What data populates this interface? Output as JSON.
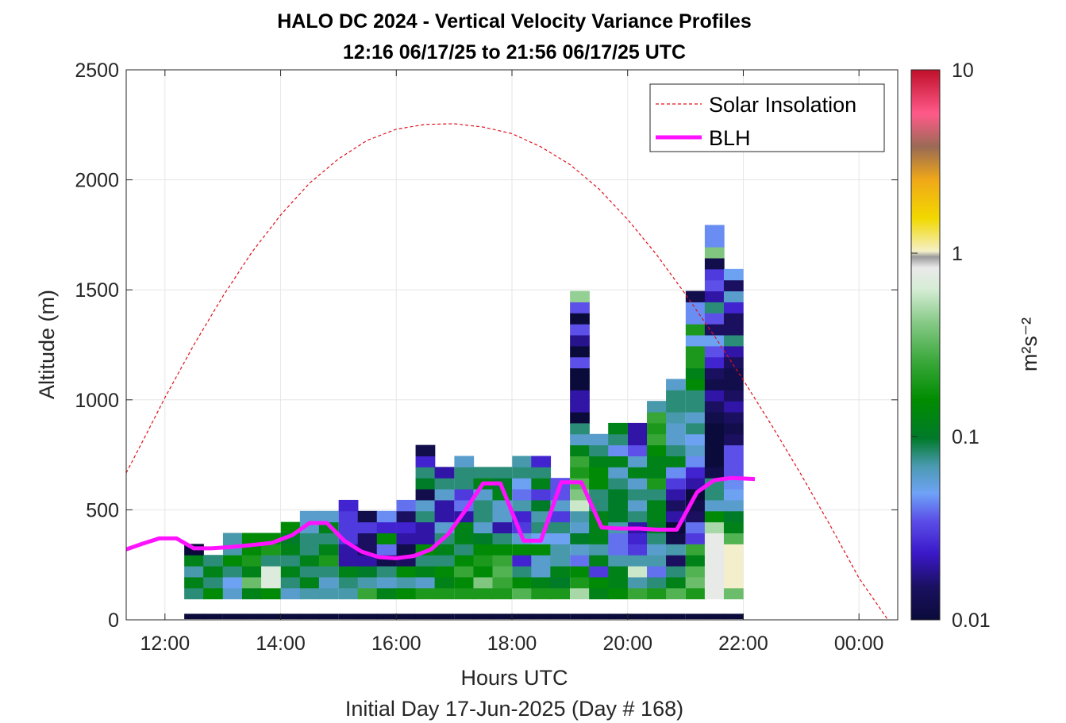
{
  "chart_data": {
    "type": "heatmap",
    "title": "HALO DC 2024 - Vertical Velocity Variance Profiles",
    "subtitle": "12:16 06/17/25 to 21:56 06/17/25  UTC",
    "xlabel": "Hours UTC",
    "xlabel2": "Initial Day 17-Jun-2025 (Day # 168)",
    "ylabel": "Altitude (m)",
    "colorbar_label": "m²s⁻²",
    "xlim": [
      11.33,
      24.67
    ],
    "ylim": [
      0,
      2500
    ],
    "x_ticks": [
      12,
      14,
      16,
      18,
      20,
      22,
      24
    ],
    "x_tick_labels": [
      "12:00",
      "14:00",
      "16:00",
      "18:00",
      "20:00",
      "22:00",
      "00:00"
    ],
    "y_ticks": [
      0,
      500,
      1000,
      1500,
      2000,
      2500
    ],
    "y_tick_labels": [
      "0",
      "500",
      "1000",
      "1500",
      "2000",
      "2500"
    ],
    "colorbar": {
      "scale": "log",
      "range": [
        0.01,
        10
      ],
      "ticks": [
        0.01,
        0.1,
        1,
        10
      ],
      "tick_labels": [
        "0.01",
        "0.1",
        "1",
        "10"
      ]
    },
    "grid": true,
    "legend": {
      "placement": "top-right",
      "entries": [
        {
          "label": "Solar Insolation",
          "color": "#e0101a",
          "style": "dashed"
        },
        {
          "label": "BLH",
          "color": "#ff12ff",
          "style": "solid"
        }
      ]
    },
    "heatmap": {
      "column_width_hours": 0.333,
      "row_height_m": 50,
      "columns": [
        {
          "x": 12.5,
          "v": [
            0.01,
            0.08,
            0.12,
            0.07,
            0.12,
            0.01
          ]
        },
        {
          "x": 12.83,
          "v": [
            0.01,
            0.15,
            0.08,
            0.12,
            0.08
          ]
        },
        {
          "x": 13.17,
          "v": [
            0.01,
            0.06,
            0.05,
            0.08,
            0.15,
            0.07,
            0.07
          ]
        },
        {
          "x": 13.5,
          "v": [
            0.01,
            0.12,
            0.35,
            0.12,
            0.2,
            0.15,
            0.15
          ]
        },
        {
          "x": 13.83,
          "v": [
            0.01,
            0.15,
            0.7,
            0.7,
            0.08,
            0.2,
            0.15
          ]
        },
        {
          "x": 14.17,
          "v": [
            0.01,
            0.06,
            0.08,
            0.12,
            0.08,
            0.12,
            0.1,
            0.15
          ]
        },
        {
          "x": 14.5,
          "v": [
            0.01,
            0.07,
            0.12,
            0.08,
            0.12,
            0.08,
            0.08,
            0.06,
            0.06
          ]
        },
        {
          "x": 14.83,
          "v": [
            0.01,
            0.07,
            0.06,
            0.08,
            0.2,
            0.12,
            0.08,
            0.12,
            0.06
          ]
        },
        {
          "x": 15.17,
          "v": [
            0.01,
            0.07,
            0.08,
            0.12,
            0.02,
            0.02,
            0.03,
            0.03,
            0.03,
            0.025
          ]
        },
        {
          "x": 15.5,
          "v": [
            0.01,
            0.25,
            0.07,
            0.1,
            0.02,
            0.015,
            0.015,
            0.03,
            0.012
          ]
        },
        {
          "x": 15.83,
          "v": [
            0.01,
            0.12,
            0.06,
            0.08,
            0.012,
            0.04,
            0.15,
            0.025,
            0.045
          ]
        },
        {
          "x": 16.17,
          "v": [
            0.01,
            0.15,
            0.07,
            0.15,
            0.015,
            0.012,
            0.02,
            0.025,
            0.015,
            0.04
          ]
        },
        {
          "x": 16.5,
          "v": [
            0.01,
            0.2,
            0.06,
            0.12,
            0.08,
            0.15,
            0.02,
            0.02,
            0.08,
            0.06,
            0.012,
            0.1,
            0.08,
            0.025,
            0.012
          ]
        },
        {
          "x": 16.83,
          "v": [
            0.01,
            0.2,
            0.12,
            0.15,
            0.08,
            0.12,
            0.08,
            0.06,
            0.02,
            0.02,
            0.06,
            0.08,
            0.02
          ]
        },
        {
          "x": 17.17,
          "v": [
            0.01,
            0.2,
            0.15,
            0.25,
            0.15,
            0.08,
            0.12,
            0.12,
            0.02,
            0.04,
            0.03,
            0.08,
            0.08,
            0.06
          ]
        },
        {
          "x": 17.5,
          "v": [
            0.01,
            0.2,
            0.4,
            0.15,
            0.2,
            0.15,
            0.1,
            0.06,
            0.08,
            0.08,
            0.06,
            0.12,
            0.08
          ]
        },
        {
          "x": 17.83,
          "v": [
            0.01,
            0.2,
            0.25,
            0.3,
            0.25,
            0.15,
            0.08,
            0.02,
            0.06,
            0.06,
            0.12,
            0.1,
            0.08
          ]
        },
        {
          "x": 18.17,
          "v": [
            0.01,
            0.3,
            0.15,
            0.08,
            0.025,
            0.15,
            0.06,
            0.03,
            0.025,
            0.07,
            0.04,
            0.05,
            0.08,
            0.07
          ]
        },
        {
          "x": 18.5,
          "v": [
            0.01,
            0.2,
            0.12,
            0.06,
            0.06,
            0.15,
            0.05,
            0.08,
            0.07,
            0.1,
            0.03,
            0.12,
            0.08,
            0.025
          ]
        },
        {
          "x": 18.83,
          "v": [
            0.01,
            0.2,
            0.1,
            0.12,
            0.07,
            0.07,
            0.05,
            0.08,
            0.03,
            0.06,
            0.035,
            0.035
          ]
        },
        {
          "x": 19.17,
          "v": [
            0.01,
            0.5,
            0.2,
            0.15,
            0.04,
            0.06,
            0.1,
            0.06,
            0.07,
            0.6,
            0.4,
            0.3,
            0.2,
            0.25,
            0.12,
            0.06,
            0.08,
            0.01,
            0.02,
            0.02,
            0.01,
            0.01,
            0.035,
            0.01,
            0.018,
            0.035,
            0.01,
            0.035,
            0.45
          ]
        },
        {
          "x": 19.5,
          "v": [
            0.01,
            0.12,
            0.15,
            0.03,
            0.12,
            0.07,
            0.12,
            0.12,
            0.12,
            0.08,
            0.08,
            0.15,
            0.15,
            0.12,
            0.08,
            0.06
          ]
        },
        {
          "x": 19.83,
          "v": [
            0.01,
            0.15,
            0.12,
            0.12,
            0.07,
            0.04,
            0.04,
            0.07,
            0.1,
            0.1,
            0.1,
            0.08,
            0.06,
            0.12,
            0.045,
            0.08,
            0.12
          ]
        },
        {
          "x": 20.17,
          "v": [
            0.01,
            0.25,
            0.07,
            0.6,
            0.07,
            0.03,
            0.025,
            0.02,
            0.08,
            0.06,
            0.08,
            0.06,
            0.12,
            0.06,
            0.035,
            0.02,
            0.02
          ]
        },
        {
          "x": 20.5,
          "v": [
            0.01,
            0.2,
            0.08,
            0.04,
            0.07,
            0.06,
            0.08,
            0.1,
            0.12,
            0.12,
            0.08,
            0.2,
            0.12,
            0.12,
            0.15,
            0.25,
            0.2,
            0.25,
            0.07
          ]
        },
        {
          "x": 20.83,
          "v": [
            0.01,
            0.3,
            0.12,
            0.08,
            0.015,
            0.07,
            0.012,
            0.01,
            0.02,
            0.015,
            0.02,
            0.03,
            0.045,
            0.12,
            0.08,
            0.06,
            0.06,
            0.07,
            0.08,
            0.08,
            0.06
          ]
        },
        {
          "x": 21.17,
          "v": [
            0.01,
            0.2,
            0.35,
            0.3,
            0.12,
            0.25,
            0.03,
            0.04,
            0.015,
            0.012,
            0.01,
            0.02,
            0.025,
            0.045,
            0.06,
            0.05,
            0.08,
            0.06,
            0.08,
            0.08,
            0.15,
            0.12,
            0.2,
            0.2,
            0.05,
            0.2,
            0.045,
            0.045,
            0.012
          ]
        },
        {
          "x": 21.5,
          "v": [
            0.01,
            0.8,
            0.8,
            0.8,
            0.8,
            0.8,
            0.8,
            0.5,
            0.15,
            0.06,
            0.08,
            0.08,
            0.012,
            0.01,
            0.01,
            0.01,
            0.01,
            0.012,
            0.015,
            0.02,
            0.012,
            0.015,
            0.025,
            0.035,
            0.05,
            0.015,
            0.035,
            0.08,
            0.02,
            0.035,
            0.03,
            0.012,
            0.4,
            0.045,
            0.045
          ]
        },
        {
          "x": 21.83,
          "v": [
            0.01,
            0.35,
            1.0,
            1.0,
            1.0,
            1.0,
            0.3,
            0.12,
            0.1,
            0.06,
            0.05,
            0.045,
            0.035,
            0.035,
            0.035,
            0.015,
            0.012,
            0.015,
            0.02,
            0.015,
            0.012,
            0.012,
            0.015,
            0.02,
            0.08,
            0.015,
            0.015,
            0.025,
            0.06,
            0.015,
            0.05
          ]
        }
      ]
    },
    "solar_insolation": {
      "x": [
        11.33,
        11.67,
        12,
        12.5,
        13,
        13.5,
        14,
        14.5,
        15,
        15.5,
        16,
        16.5,
        17,
        17.5,
        18,
        18.5,
        19,
        19.5,
        20,
        20.5,
        21,
        21.5,
        22,
        22.5,
        23,
        23.5,
        24,
        24.5
      ],
      "y": [
        668,
        840,
        1010,
        1250,
        1470,
        1670,
        1840,
        1985,
        2095,
        2180,
        2230,
        2252,
        2255,
        2240,
        2210,
        2150,
        2070,
        1960,
        1820,
        1660,
        1480,
        1290,
        1090,
        880,
        660,
        430,
        190,
        0
      ]
    },
    "blh": {
      "x": [
        11.33,
        11.6,
        11.9,
        12.2,
        12.5,
        12.8,
        13.1,
        13.5,
        13.85,
        14.2,
        14.5,
        14.8,
        15.1,
        15.4,
        15.7,
        16.0,
        16.3,
        16.6,
        16.9,
        17.2,
        17.5,
        17.8,
        18.2,
        18.5,
        18.85,
        19.2,
        19.55,
        19.85,
        20.2,
        20.5,
        20.85,
        21.2,
        21.5,
        21.8,
        22.2
      ],
      "y": [
        320,
        345,
        370,
        370,
        325,
        325,
        330,
        340,
        350,
        385,
        440,
        440,
        360,
        310,
        285,
        280,
        290,
        320,
        390,
        500,
        620,
        620,
        360,
        360,
        625,
        625,
        420,
        415,
        415,
        410,
        410,
        580,
        635,
        645,
        640
      ]
    }
  }
}
